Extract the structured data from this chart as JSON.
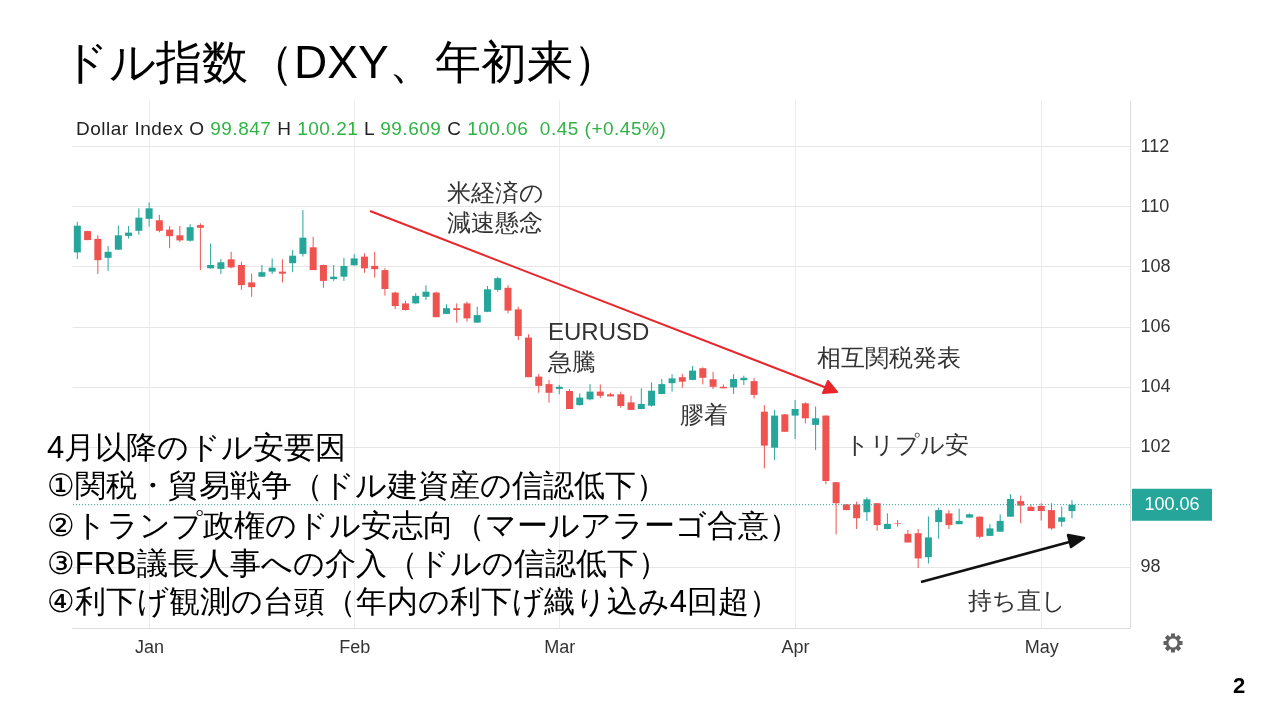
{
  "chart_data": {
    "type": "candlestick",
    "title": "ドル指数（DXY、年初来）",
    "subtitle": "Dollar Index O 99.847 H 100.21 L 99.609 C 100.06  0.45 (+0.45%)",
    "categories": [
      null,
      null,
      null,
      null,
      null,
      null,
      null,
      "Jan",
      null,
      null,
      null,
      null,
      null,
      null,
      null,
      null,
      null,
      null,
      null,
      null,
      null,
      null,
      null,
      null,
      null,
      null,
      null,
      "Feb",
      null,
      null,
      null,
      null,
      null,
      null,
      null,
      null,
      null,
      null,
      null,
      null,
      null,
      null,
      null,
      null,
      null,
      null,
      null,
      "Mar",
      null,
      null,
      null,
      null,
      null,
      null,
      null,
      null,
      null,
      null,
      null,
      null,
      null,
      null,
      null,
      null,
      null,
      null,
      null,
      null,
      null,
      null,
      "Apr",
      null,
      null,
      null,
      null,
      null,
      null,
      null,
      null,
      null,
      null,
      null,
      null,
      null,
      null,
      null,
      null,
      null,
      null,
      null,
      null,
      null,
      null,
      null,
      "May",
      null,
      null,
      null
    ],
    "ohlc": [
      [
        108.47,
        109.49,
        108.25,
        109.36
      ],
      [
        109.18,
        109.19,
        108.88,
        108.88
      ],
      [
        108.92,
        109.04,
        107.75,
        108.21
      ],
      [
        108.29,
        108.68,
        107.85,
        108.49
      ],
      [
        108.56,
        109.36,
        108.55,
        109.04
      ],
      [
        109.02,
        109.35,
        108.93,
        109.13
      ],
      [
        109.19,
        109.94,
        109.06,
        109.63
      ],
      [
        109.59,
        110.14,
        109.33,
        109.94
      ],
      [
        109.54,
        109.72,
        109.14,
        109.19
      ],
      [
        109.23,
        109.35,
        108.61,
        109.01
      ],
      [
        109.04,
        109.35,
        108.82,
        108.87
      ],
      [
        108.86,
        109.41,
        108.83,
        109.31
      ],
      [
        109.38,
        109.44,
        107.88,
        109.29
      ],
      [
        107.94,
        108.77,
        107.93,
        108.05
      ],
      [
        107.92,
        108.25,
        107.75,
        108.14
      ],
      [
        108.24,
        108.49,
        107.94,
        107.97
      ],
      [
        108.05,
        108.16,
        107.22,
        107.38
      ],
      [
        107.47,
        107.77,
        106.99,
        107.31
      ],
      [
        107.66,
        108.05,
        107.65,
        107.81
      ],
      [
        107.83,
        108.27,
        107.75,
        107.96
      ],
      [
        107.83,
        108.24,
        107.47,
        107.76
      ],
      [
        108.11,
        108.55,
        107.81,
        108.36
      ],
      [
        108.42,
        109.88,
        108.33,
        108.96
      ],
      [
        108.64,
        108.99,
        107.88,
        107.88
      ],
      [
        108.05,
        108.06,
        107.29,
        107.52
      ],
      [
        107.58,
        108.05,
        107.52,
        107.66
      ],
      [
        107.66,
        108.29,
        107.52,
        108.02
      ],
      [
        108.04,
        108.41,
        108.03,
        108.27
      ],
      [
        108.33,
        108.44,
        107.79,
        107.94
      ],
      [
        108.02,
        108.49,
        107.63,
        107.91
      ],
      [
        107.88,
        107.94,
        107.03,
        107.25
      ],
      [
        107.13,
        107.16,
        106.58,
        106.68
      ],
      [
        106.77,
        106.86,
        106.53,
        106.55
      ],
      [
        106.77,
        107.11,
        106.76,
        107.02
      ],
      [
        106.99,
        107.38,
        106.88,
        107.16
      ],
      [
        107.13,
        107.16,
        106.31,
        106.31
      ],
      [
        106.42,
        106.74,
        106.41,
        106.61
      ],
      [
        106.61,
        106.77,
        106.13,
        106.55
      ],
      [
        106.77,
        106.83,
        106.16,
        106.27
      ],
      [
        106.13,
        106.66,
        106.12,
        106.38
      ],
      [
        106.49,
        107.35,
        106.48,
        107.24
      ],
      [
        107.22,
        107.66,
        107.16,
        107.61
      ],
      [
        107.29,
        107.38,
        106.44,
        106.53
      ],
      [
        106.57,
        106.66,
        105.55,
        105.68
      ],
      [
        105.63,
        105.74,
        104.31,
        104.31
      ],
      [
        104.33,
        104.42,
        103.79,
        104.02
      ],
      [
        104.08,
        104.22,
        103.46,
        103.79
      ],
      [
        103.92,
        104.05,
        103.74,
        103.99
      ],
      [
        103.85,
        103.91,
        103.25,
        103.25
      ],
      [
        103.38,
        103.77,
        103.37,
        103.63
      ],
      [
        103.57,
        104.08,
        103.54,
        103.83
      ],
      [
        103.83,
        104.07,
        103.61,
        103.69
      ],
      [
        103.74,
        103.79,
        103.67,
        103.67
      ],
      [
        103.74,
        103.83,
        103.29,
        103.35
      ],
      [
        103.47,
        103.69,
        103.22,
        103.22
      ],
      [
        103.25,
        103.94,
        103.24,
        103.42
      ],
      [
        103.36,
        104.14,
        103.33,
        103.86
      ],
      [
        103.75,
        104.25,
        103.74,
        104.08
      ],
      [
        104.11,
        104.41,
        103.83,
        104.27
      ],
      [
        104.31,
        104.42,
        103.96,
        104.16
      ],
      [
        104.22,
        104.68,
        104.21,
        104.53
      ],
      [
        104.61,
        104.64,
        104.07,
        104.29
      ],
      [
        104.24,
        104.49,
        103.92,
        103.99
      ],
      [
        103.99,
        104.07,
        103.94,
        103.94
      ],
      [
        103.97,
        104.41,
        103.75,
        104.25
      ],
      [
        104.21,
        104.36,
        104.05,
        104.29
      ],
      [
        104.18,
        104.29,
        103.6,
        103.72
      ],
      [
        103.16,
        103.38,
        101.27,
        102.03
      ],
      [
        101.96,
        103.22,
        101.55,
        103.03
      ],
      [
        103.07,
        103.08,
        102.49,
        102.49
      ],
      [
        103.03,
        103.55,
        102.25,
        103.25
      ],
      [
        103.44,
        103.47,
        102.77,
        102.94
      ],
      [
        102.72,
        103.33,
        101.88,
        102.94
      ],
      [
        103.03,
        103.04,
        100.74,
        100.85
      ],
      [
        100.81,
        100.82,
        99.07,
        100.11
      ],
      [
        100.07,
        100.08,
        99.88,
        99.88
      ],
      [
        100.07,
        100.16,
        99.25,
        99.61
      ],
      [
        99.81,
        100.31,
        99.52,
        100.24
      ],
      [
        100.11,
        100.12,
        99.19,
        99.38
      ],
      [
        99.25,
        99.77,
        99.24,
        99.42
      ],
      [
        99.45,
        99.55,
        99.33,
        99.43
      ],
      [
        99.09,
        99.22,
        98.8,
        98.8
      ],
      [
        99.11,
        99.25,
        97.95,
        98.27
      ],
      [
        98.31,
        99.67,
        98.1,
        98.97
      ],
      [
        99.48,
        99.96,
        98.92,
        99.88
      ],
      [
        99.77,
        99.88,
        99.25,
        99.38
      ],
      [
        99.41,
        99.92,
        99.41,
        99.52
      ],
      [
        99.63,
        99.77,
        99.63,
        99.74
      ],
      [
        99.66,
        99.67,
        98.94,
        98.99
      ],
      [
        99.02,
        99.41,
        99.02,
        99.27
      ],
      [
        99.16,
        99.74,
        99.16,
        99.52
      ],
      [
        99.66,
        100.41,
        99.66,
        100.25
      ],
      [
        100.18,
        100.36,
        99.44,
        100.03
      ],
      [
        99.99,
        100.07,
        99.85,
        99.85
      ],
      [
        100.02,
        100.11,
        99.53,
        99.85
      ],
      [
        99.88,
        100.11,
        99.22,
        99.27
      ],
      [
        99.49,
        100.0,
        99.33,
        99.64
      ],
      [
        99.847,
        100.21,
        99.609,
        100.06
      ]
    ],
    "colors": [
      "#26a69a",
      "#ef5350",
      "#ef5350",
      "#26a69a",
      "#26a69a",
      "#26a69a",
      "#26a69a",
      "#26a69a",
      "#ef5350",
      "#ef5350",
      "#ef5350",
      "#26a69a",
      "#ef5350",
      "#26a69a",
      "#26a69a",
      "#ef5350",
      "#ef5350",
      "#ef5350",
      "#26a69a",
      "#26a69a",
      "#ef5350",
      "#26a69a",
      "#26a69a",
      "#ef5350",
      "#ef5350",
      "#26a69a",
      "#26a69a",
      "#26a69a",
      "#ef5350",
      "#ef5350",
      "#ef5350",
      "#ef5350",
      "#ef5350",
      "#26a69a",
      "#26a69a",
      "#ef5350",
      "#26a69a",
      "#ef5350",
      "#ef5350",
      "#26a69a",
      "#26a69a",
      "#26a69a",
      "#ef5350",
      "#ef5350",
      "#ef5350",
      "#ef5350",
      "#ef5350",
      "#26a69a",
      "#ef5350",
      "#26a69a",
      "#26a69a",
      "#ef5350",
      "#ef5350",
      "#ef5350",
      "#ef5350",
      "#26a69a",
      "#26a69a",
      "#26a69a",
      "#26a69a",
      "#ef5350",
      "#26a69a",
      "#ef5350",
      "#ef5350",
      "#ef5350",
      "#26a69a",
      "#26a69a",
      "#ef5350",
      "#ef5350",
      "#26a69a",
      "#ef5350",
      "#26a69a",
      "#ef5350",
      "#26a69a",
      "#ef5350",
      "#ef5350",
      "#ef5350",
      "#ef5350",
      "#26a69a",
      "#ef5350",
      "#26a69a",
      "#ef5350",
      "#ef5350",
      "#ef5350",
      "#26a69a",
      "#26a69a",
      "#ef5350",
      "#26a69a",
      "#26a69a",
      "#ef5350",
      "#26a69a",
      "#26a69a",
      "#26a69a",
      "#ef5350",
      "#ef5350",
      "#ef5350",
      "#ef5350",
      "#26a69a",
      "#26a69a"
    ],
    "ylim": [
      95.95,
      113.55
    ],
    "yticks": [
      98,
      102,
      104,
      106,
      108,
      110,
      112
    ],
    "grid": true,
    "ref_lines": [
      {
        "axis": "y",
        "value": 100.06,
        "label": "100.06",
        "color": "#26a69a",
        "line_style": "dotted"
      }
    ],
    "annotations": [
      "米経済の減速懸念",
      "EURUSD急騰",
      "膠着",
      "相互関税発表",
      "トリプル安",
      "持ち直し",
      "4月以降のドル安要因",
      "①関税・貿易戦争（ドル建資産の信認低下）",
      "②トランプ政権のドル安志向（マールアラーゴ合意）",
      "③FRB議長人事への介入（ドルの信認低下）",
      "④利下げ観測の台頭（年内の利下げ織り込み4回超）",
      "2"
    ]
  }
}
